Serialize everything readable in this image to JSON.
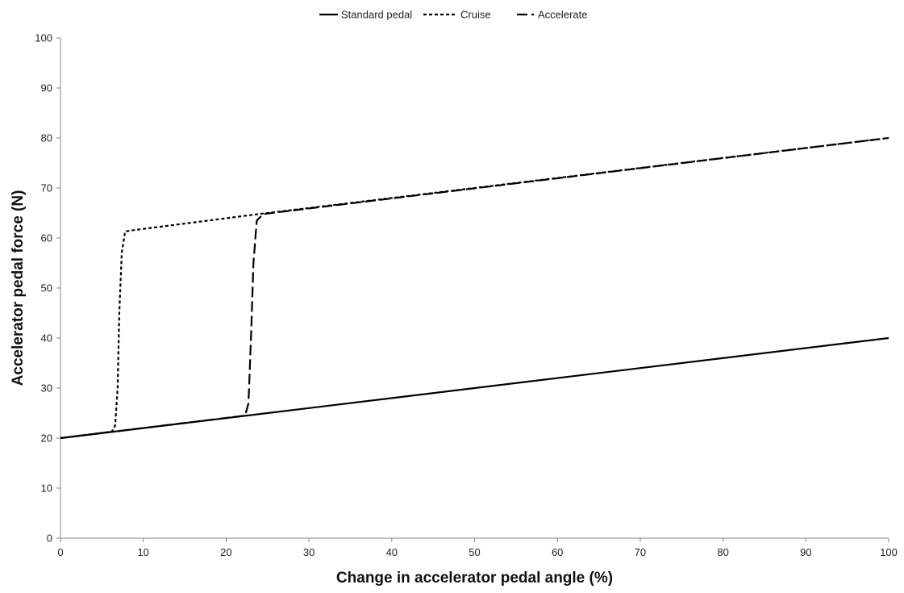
{
  "chart_data": {
    "type": "line",
    "title": "",
    "xlabel": "Change in accelerator pedal angle (%)",
    "ylabel": "Accelerator pedal force (N)",
    "xlim": [
      0,
      100
    ],
    "ylim": [
      0,
      100
    ],
    "x_ticks": [
      0,
      10,
      20,
      30,
      40,
      50,
      60,
      70,
      80,
      90,
      100
    ],
    "y_ticks": [
      0,
      10,
      20,
      30,
      40,
      50,
      60,
      70,
      80,
      90,
      100
    ],
    "grid": false,
    "legend_position": "top-center",
    "colors": {
      "line": "#000000",
      "axis": "#888888"
    },
    "series": [
      {
        "name": "Standard pedal",
        "style": "solid",
        "points": [
          [
            0,
            20
          ],
          [
            100,
            40
          ]
        ]
      },
      {
        "name": "Cruise",
        "style": "dotted",
        "points": [
          [
            0,
            20
          ],
          [
            6.2,
            21.3
          ],
          [
            6.6,
            22.5
          ],
          [
            6.9,
            30
          ],
          [
            7.1,
            45
          ],
          [
            7.4,
            57
          ],
          [
            7.8,
            61.3
          ],
          [
            8.5,
            61.5
          ],
          [
            24,
            64.8
          ],
          [
            100,
            80
          ]
        ]
      },
      {
        "name": "Accelerate",
        "style": "dashed",
        "points": [
          [
            0,
            20
          ],
          [
            22.3,
            24.5
          ],
          [
            22.7,
            27
          ],
          [
            23.0,
            40
          ],
          [
            23.3,
            55
          ],
          [
            23.7,
            63.5
          ],
          [
            24.5,
            64.8
          ],
          [
            100,
            80
          ]
        ]
      }
    ]
  }
}
